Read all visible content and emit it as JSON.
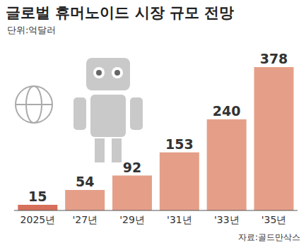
{
  "chart_data": {
    "type": "bar",
    "title": "글로벌 휴머노이드 시장 규모 전망",
    "subtitle": "단위:억달러",
    "source": "자료:골드만삭스",
    "categories": [
      "2025년",
      "'27년",
      "'29년",
      "'31년",
      "'33년",
      "'35년"
    ],
    "values": [
      15,
      54,
      92,
      153,
      240,
      378
    ],
    "colors": [
      "#d6705a",
      "#e59f89",
      "#e59f89",
      "#e59f89",
      "#e59f89",
      "#e59f89"
    ],
    "ylim": [
      0,
      378
    ],
    "data_labels": true,
    "tick_labels": "x",
    "grid": false
  }
}
